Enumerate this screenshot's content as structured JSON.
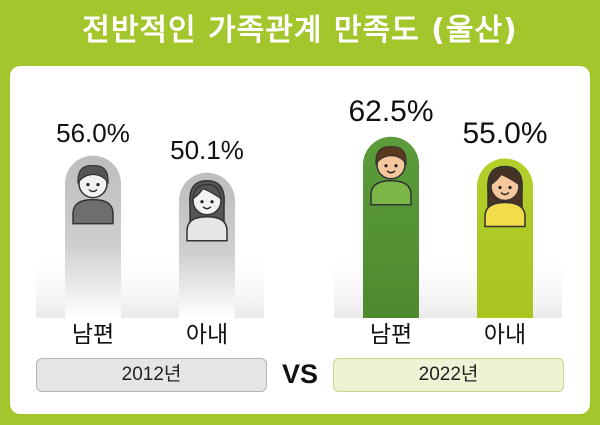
{
  "title": "전반적인 가족관계 만족도 (울산)",
  "vs_label": "VS",
  "colors": {
    "background": "#a3c62c",
    "bar_2012": "#bdbdbd",
    "husband_2022": "#5c9c3a",
    "wife_2022": "#b5cf2a"
  },
  "chart_data": [
    {
      "type": "bar",
      "group_label": "2012년",
      "categories": [
        "남편",
        "아내"
      ],
      "values": [
        56.0,
        50.1
      ],
      "value_labels": [
        "56.0%",
        "50.1%"
      ],
      "icons": [
        "man-avatar-icon",
        "woman-avatar-icon"
      ]
    },
    {
      "type": "bar",
      "group_label": "2022년",
      "categories": [
        "남편",
        "아내"
      ],
      "values": [
        62.5,
        55.0
      ],
      "value_labels": [
        "62.5%",
        "55.0%"
      ],
      "icons": [
        "man-avatar-icon",
        "woman-avatar-icon"
      ]
    }
  ]
}
